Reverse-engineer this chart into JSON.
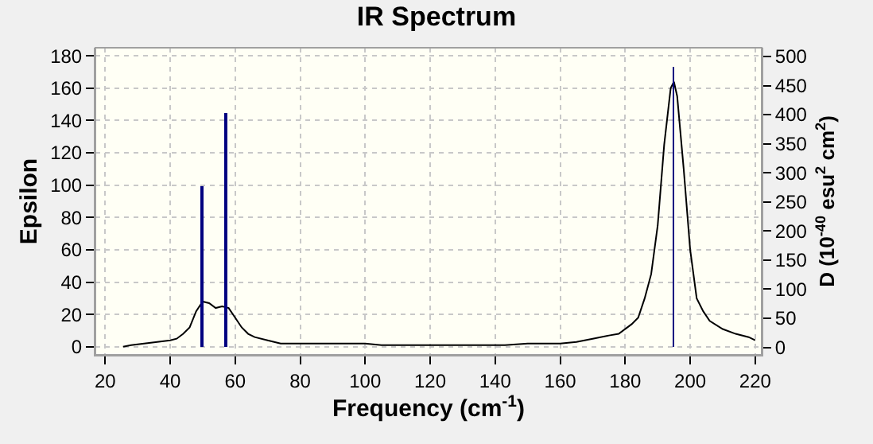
{
  "chart_data": {
    "type": "line",
    "title": "IR Spectrum",
    "xlabel": "Frequency (cm$^{-1}$)",
    "ylabel": "Epsilon",
    "y2label": "D (10$^{-40}$ esu$^{2}$ cm$^{2}$)",
    "xlim": [
      17,
      222
    ],
    "xticks": [
      20,
      40,
      60,
      80,
      100,
      120,
      140,
      160,
      180,
      200,
      220
    ],
    "ylim": [
      -5,
      185
    ],
    "yticks": [
      0,
      20,
      40,
      60,
      80,
      100,
      120,
      140,
      160,
      180
    ],
    "y2lim": [
      -13,
      515
    ],
    "y2ticks": [
      0,
      50,
      100,
      150,
      200,
      250,
      300,
      350,
      400,
      450,
      500
    ],
    "grid": true,
    "series": [
      {
        "color": "#000000",
        "x": [
          25.5,
          28,
          32,
          36,
          40,
          42,
          44,
          46,
          48,
          50,
          52,
          54,
          56,
          58,
          60,
          62,
          64,
          66,
          70,
          74,
          80,
          100,
          105,
          120,
          140,
          143,
          150,
          160,
          165,
          170,
          175,
          178,
          182,
          184,
          186,
          188,
          190,
          192,
          194,
          195,
          196,
          198,
          200,
          202,
          204,
          206,
          210,
          214,
          218,
          220
        ],
        "values": [
          0,
          1,
          2,
          3,
          4,
          5,
          8,
          12,
          22,
          28,
          27,
          24,
          25,
          24,
          18,
          12,
          8,
          6,
          4,
          2,
          2,
          2,
          1,
          1,
          1,
          1,
          2,
          2,
          3,
          5,
          7,
          8,
          14,
          18,
          30,
          45,
          75,
          125,
          160,
          164,
          155,
          110,
          60,
          30,
          22,
          16,
          11,
          8,
          6,
          4
        ]
      },
      {
        "type": "bar",
        "axis": "y2",
        "color": "#000080",
        "x": [
          49.8,
          57,
          194.9
        ],
        "values": [
          277,
          404,
          483
        ]
      }
    ]
  }
}
